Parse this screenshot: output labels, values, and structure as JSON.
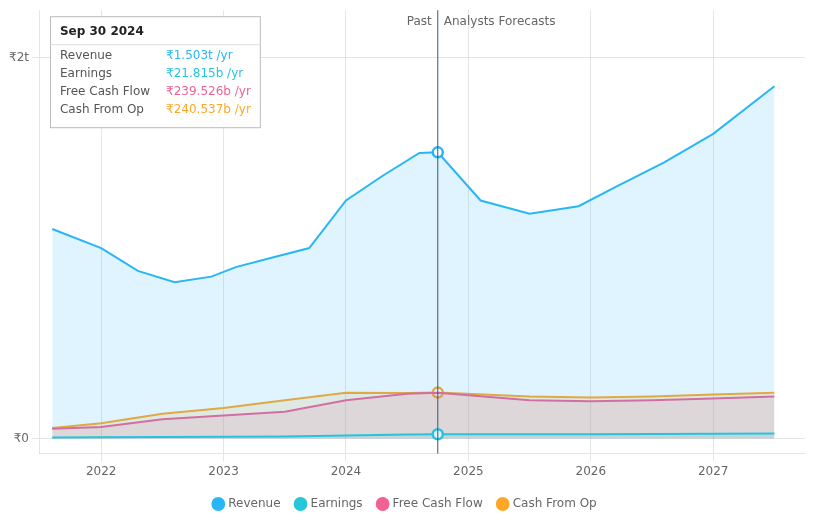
{
  "chart_data": {
    "type": "line",
    "xlim": [
      2021.5,
      2027.75
    ],
    "xticks": [
      2022,
      2023,
      2024,
      2025,
      2026,
      2027
    ],
    "ylim": [
      -80000000000.0,
      2250000000000.0
    ],
    "yticks": [
      {
        "value": 0,
        "label": "₹0"
      },
      {
        "value": 2000000000000.0,
        "label": "₹2t"
      }
    ],
    "grid": true,
    "legend": "bottom",
    "divider_x": 2024.75,
    "annotations": [
      "Past",
      "Analysts Forecasts"
    ],
    "series": [
      {
        "name": "Revenue",
        "color": "#29b6f6",
        "x": [
          2021.6,
          2022.0,
          2022.3,
          2022.6,
          2022.9,
          2023.1,
          2023.4,
          2023.7,
          2024.0,
          2024.3,
          2024.6,
          2024.75,
          2025.1,
          2025.5,
          2025.9,
          2026.2,
          2026.6,
          2027.0,
          2027.5
        ],
        "values": [
          1100000000000.0,
          1000000000000.0,
          880000000000.0,
          820000000000.0,
          850000000000.0,
          900000000000.0,
          950000000000.0,
          1000000000000.0,
          1250000000000.0,
          1380000000000.0,
          1500000000000.0,
          1503000000000.0,
          1250000000000.0,
          1180000000000.0,
          1220000000000.0,
          1320000000000.0,
          1450000000000.0,
          1600000000000.0,
          1850000000000.0
        ]
      },
      {
        "name": "Earnings",
        "color": "#26c6da",
        "x": [
          2021.6,
          2022.0,
          2022.5,
          2023.0,
          2023.5,
          2024.0,
          2024.5,
          2024.75,
          2025.5,
          2026.0,
          2026.5,
          2027.0,
          2027.5
        ],
        "values": [
          5000000000.0,
          6000000000.0,
          7000000000.0,
          8000000000.0,
          10000000000.0,
          15000000000.0,
          20000000000.0,
          21815000000.0,
          21500000000.0,
          22000000000.0,
          23000000000.0,
          24000000000.0,
          25000000000.0
        ]
      },
      {
        "name": "Free Cash Flow",
        "color": "#f06292",
        "x": [
          2021.6,
          2022.0,
          2022.5,
          2023.0,
          2023.5,
          2024.0,
          2024.5,
          2024.75,
          2025.5,
          2026.0,
          2026.5,
          2027.0,
          2027.5
        ],
        "values": [
          50000000000.0,
          60000000000.0,
          100000000000.0,
          120000000000.0,
          140000000000.0,
          200000000000.0,
          235000000000.0,
          239526000000.0,
          200000000000.0,
          195000000000.0,
          200000000000.0,
          210000000000.0,
          220000000000.0
        ]
      },
      {
        "name": "Cash From Op",
        "color": "#ffa726",
        "x": [
          2021.6,
          2022.0,
          2022.5,
          2023.0,
          2023.5,
          2024.0,
          2024.5,
          2024.75,
          2025.5,
          2026.0,
          2026.5,
          2027.0,
          2027.5
        ],
        "values": [
          55000000000.0,
          80000000000.0,
          130000000000.0,
          160000000000.0,
          200000000000.0,
          240000000000.0,
          238000000000.0,
          240537000000.0,
          220000000000.0,
          215000000000.0,
          220000000000.0,
          230000000000.0,
          240000000000.0
        ]
      }
    ],
    "divider_markers": [
      "Revenue",
      "Earnings",
      "Cash From Op"
    ],
    "tooltip": {
      "title": "Sep 30 2024",
      "rows": [
        {
          "label": "Revenue",
          "value": "₹1.503t /yr"
        },
        {
          "label": "Earnings",
          "value": "₹21.815b /yr"
        },
        {
          "label": "Free Cash Flow",
          "value": "₹239.526b /yr"
        },
        {
          "label": "Cash From Op",
          "value": "₹240.537b /yr"
        }
      ]
    }
  }
}
